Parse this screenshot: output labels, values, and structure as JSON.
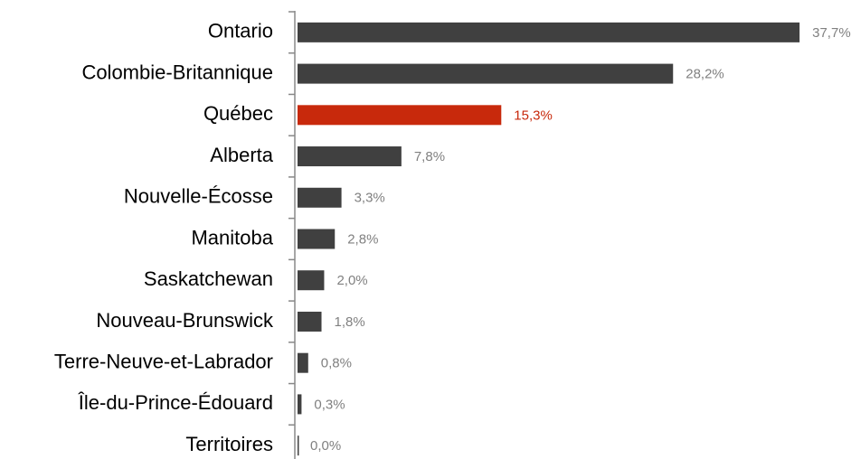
{
  "chart_data": {
    "type": "barh",
    "categories": [
      "Ontario",
      "Colombie-Britannique",
      "Québec",
      "Alberta",
      "Nouvelle-Écosse",
      "Manitoba",
      "Saskatchewan",
      "Nouveau-Brunswick",
      "Terre-Neuve-et-Labrador",
      "Île-du-Prince-Édouard",
      "Territoires"
    ],
    "values": [
      37.7,
      28.2,
      15.3,
      7.8,
      3.3,
      2.8,
      2.0,
      1.8,
      0.8,
      0.3,
      0.0
    ],
    "value_labels": [
      "37,7%",
      "28,2%",
      "15,3%",
      "7,8%",
      "3,3%",
      "2,8%",
      "2,0%",
      "1,8%",
      "0,8%",
      "0,3%",
      "0,0%"
    ],
    "colors": [
      "#404040",
      "#404040",
      "#c8290c",
      "#404040",
      "#404040",
      "#404040",
      "#404040",
      "#404040",
      "#404040",
      "#404040",
      "#404040"
    ],
    "value_label_colors": [
      "#808080",
      "#808080",
      "#c8290c",
      "#808080",
      "#808080",
      "#808080",
      "#808080",
      "#808080",
      "#808080",
      "#808080",
      "#808080"
    ],
    "xlim": [
      0,
      40
    ]
  }
}
